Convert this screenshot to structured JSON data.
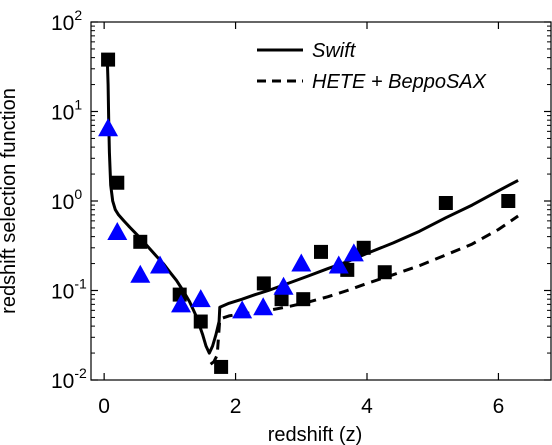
{
  "chart_data": {
    "type": "line",
    "title": "",
    "xlabel": "redshift (z)",
    "ylabel": "redshift selection function",
    "xlim": [
      -0.2,
      6.8
    ],
    "ylim": [
      0.01,
      100
    ],
    "yscale": "log",
    "grid": false,
    "legend_position": "top-right",
    "x_ticks": [
      0,
      2,
      4,
      6
    ],
    "y_ticks": [
      {
        "value": 0.01,
        "base": "10",
        "exp": "-2"
      },
      {
        "value": 0.1,
        "base": "10",
        "exp": "-1"
      },
      {
        "value": 1,
        "base": "10",
        "exp": "0"
      },
      {
        "value": 10,
        "base": "10",
        "exp": "1"
      },
      {
        "value": 100,
        "base": "10",
        "exp": "2"
      }
    ],
    "series": [
      {
        "name": "Swift",
        "style": "solid",
        "color": "#000000",
        "x": [
          0.05,
          0.06,
          0.07,
          0.08,
          0.1,
          0.13,
          0.17,
          0.22,
          0.3,
          0.4,
          0.5,
          0.6,
          0.7,
          0.8,
          0.9,
          1.0,
          1.1,
          1.2,
          1.3,
          1.4,
          1.5,
          1.55,
          1.6,
          1.65,
          1.7,
          1.75,
          1.76,
          1.9,
          2.1,
          2.3,
          2.5,
          2.8,
          3.1,
          3.4,
          3.7,
          4.0,
          4.4,
          4.8,
          5.2,
          5.6,
          6.0,
          6.3
        ],
        "y": [
          35,
          20,
          8,
          3.5,
          1.5,
          1.0,
          0.8,
          0.7,
          0.6,
          0.5,
          0.42,
          0.35,
          0.29,
          0.24,
          0.2,
          0.16,
          0.13,
          0.1,
          0.075,
          0.052,
          0.032,
          0.024,
          0.02,
          0.024,
          0.032,
          0.045,
          0.065,
          0.072,
          0.08,
          0.09,
          0.1,
          0.12,
          0.145,
          0.175,
          0.21,
          0.26,
          0.34,
          0.46,
          0.65,
          0.9,
          1.3,
          1.7
        ]
      },
      {
        "name": "HETE + BeppoSAX",
        "style": "dashed",
        "color": "#000000",
        "x": [
          1.62,
          1.67,
          1.72,
          1.76,
          1.9,
          2.1,
          2.3,
          2.5,
          2.8,
          3.1,
          3.4,
          3.7,
          4.0,
          4.4,
          4.8,
          5.2,
          5.6,
          6.0,
          6.3
        ],
        "y": [
          0.015,
          0.016,
          0.019,
          0.048,
          0.052,
          0.055,
          0.057,
          0.06,
          0.066,
          0.074,
          0.085,
          0.1,
          0.12,
          0.15,
          0.19,
          0.25,
          0.33,
          0.48,
          0.68
        ]
      },
      {
        "name": "",
        "style": "markers",
        "marker": "square",
        "color": "#000000",
        "x": [
          0.06,
          0.2,
          0.55,
          1.15,
          1.47,
          1.78,
          2.43,
          2.7,
          3.03,
          3.3,
          3.7,
          3.95,
          4.27,
          5.2,
          6.15
        ],
        "y": [
          38,
          1.6,
          0.35,
          0.09,
          0.045,
          0.014,
          0.12,
          0.08,
          0.08,
          0.27,
          0.17,
          0.3,
          0.16,
          0.95,
          1.0
        ]
      },
      {
        "name": "",
        "style": "markers",
        "marker": "triangle",
        "color": "#0000ff",
        "x": [
          0.06,
          0.2,
          0.55,
          0.85,
          1.17,
          1.47,
          2.1,
          2.42,
          2.73,
          3.0,
          3.57,
          3.8
        ],
        "y": [
          6.5,
          0.45,
          0.15,
          0.19,
          0.07,
          0.08,
          0.06,
          0.065,
          0.11,
          0.2,
          0.19,
          0.26
        ]
      }
    ]
  }
}
